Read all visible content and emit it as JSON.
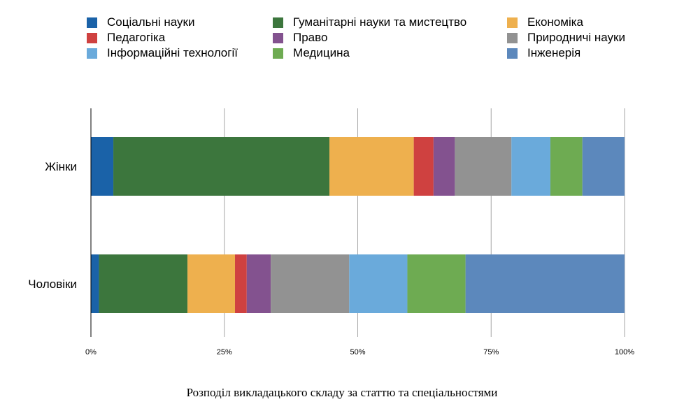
{
  "chart_data": {
    "type": "bar",
    "orientation": "horizontal",
    "stacked": true,
    "normalized": true,
    "title": "Розподіл викладацького складу за статтю та спеціальностями",
    "categories": [
      "Жінки",
      "Чоловіки"
    ],
    "series": [
      {
        "name": "Соціальні науки",
        "color": "#1a62a8",
        "values": [
          4.2,
          1.5
        ]
      },
      {
        "name": "Педагогіка",
        "color": "#cf4140",
        "values": [
          3.7,
          2.2
        ]
      },
      {
        "name": "Інформаційні технології",
        "color": "#6aaadb",
        "values": [
          7.3,
          10.9
        ]
      },
      {
        "name": "Гуманітарні науки та мистецтво",
        "color": "#3c763d",
        "values": [
          40.5,
          16.6
        ]
      },
      {
        "name": "Право",
        "color": "#83528f",
        "values": [
          4.0,
          4.5
        ]
      },
      {
        "name": "Медицина",
        "color": "#6eab52",
        "values": [
          6.0,
          10.9
        ]
      },
      {
        "name": "Економіка",
        "color": "#eeb04e",
        "values": [
          15.8,
          8.9
        ]
      },
      {
        "name": "Природничі науки",
        "color": "#929292",
        "values": [
          10.6,
          14.7
        ]
      },
      {
        "name": "Інженерія",
        "color": "#5c88bc",
        "values": [
          7.9,
          29.8
        ]
      }
    ],
    "stack_order": [
      0,
      3,
      6,
      1,
      4,
      7,
      2,
      5,
      8
    ],
    "xticks": [
      "0%",
      "25%",
      "50%",
      "75%",
      "100%"
    ],
    "xlim": [
      0,
      100
    ],
    "grid": true,
    "legend_position": "top"
  }
}
